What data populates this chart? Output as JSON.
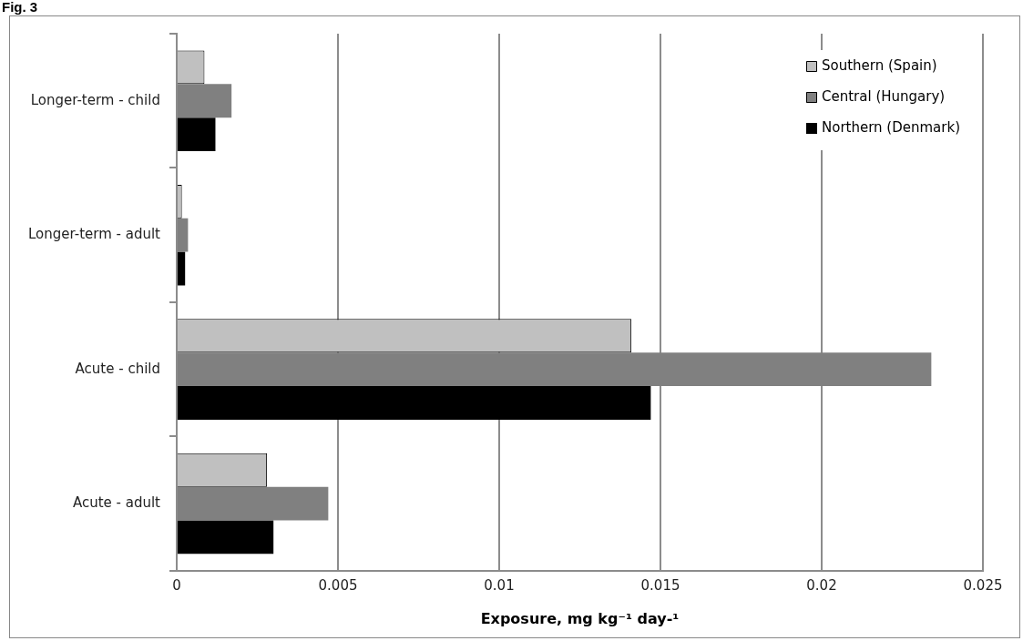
{
  "chart_data": {
    "type": "bar",
    "orientation": "horizontal",
    "title": "Fig. 3",
    "categories": [
      "Longer-term - child",
      "Longer-term - adult",
      "Acute - child",
      "Acute - adult"
    ],
    "series": [
      {
        "name": "Southern (Spain)",
        "color": "#c0c0c0",
        "values": [
          0.00086,
          0.00016,
          0.0141,
          0.0028
        ]
      },
      {
        "name": "Central (Hungary)",
        "color": "#808080",
        "values": [
          0.0017,
          0.00035,
          0.0234,
          0.0047
        ]
      },
      {
        "name": "Northern (Denmark)",
        "color": "#000000",
        "values": [
          0.0012,
          0.00026,
          0.0147,
          0.003
        ]
      }
    ],
    "xlabel": "Exposure, mg kg⁻¹ day-¹",
    "xlim": [
      0,
      0.025
    ],
    "xticks": [
      0,
      0.005,
      0.01,
      0.015,
      0.02,
      0.025
    ],
    "grid": "x",
    "legend": "top right"
  }
}
